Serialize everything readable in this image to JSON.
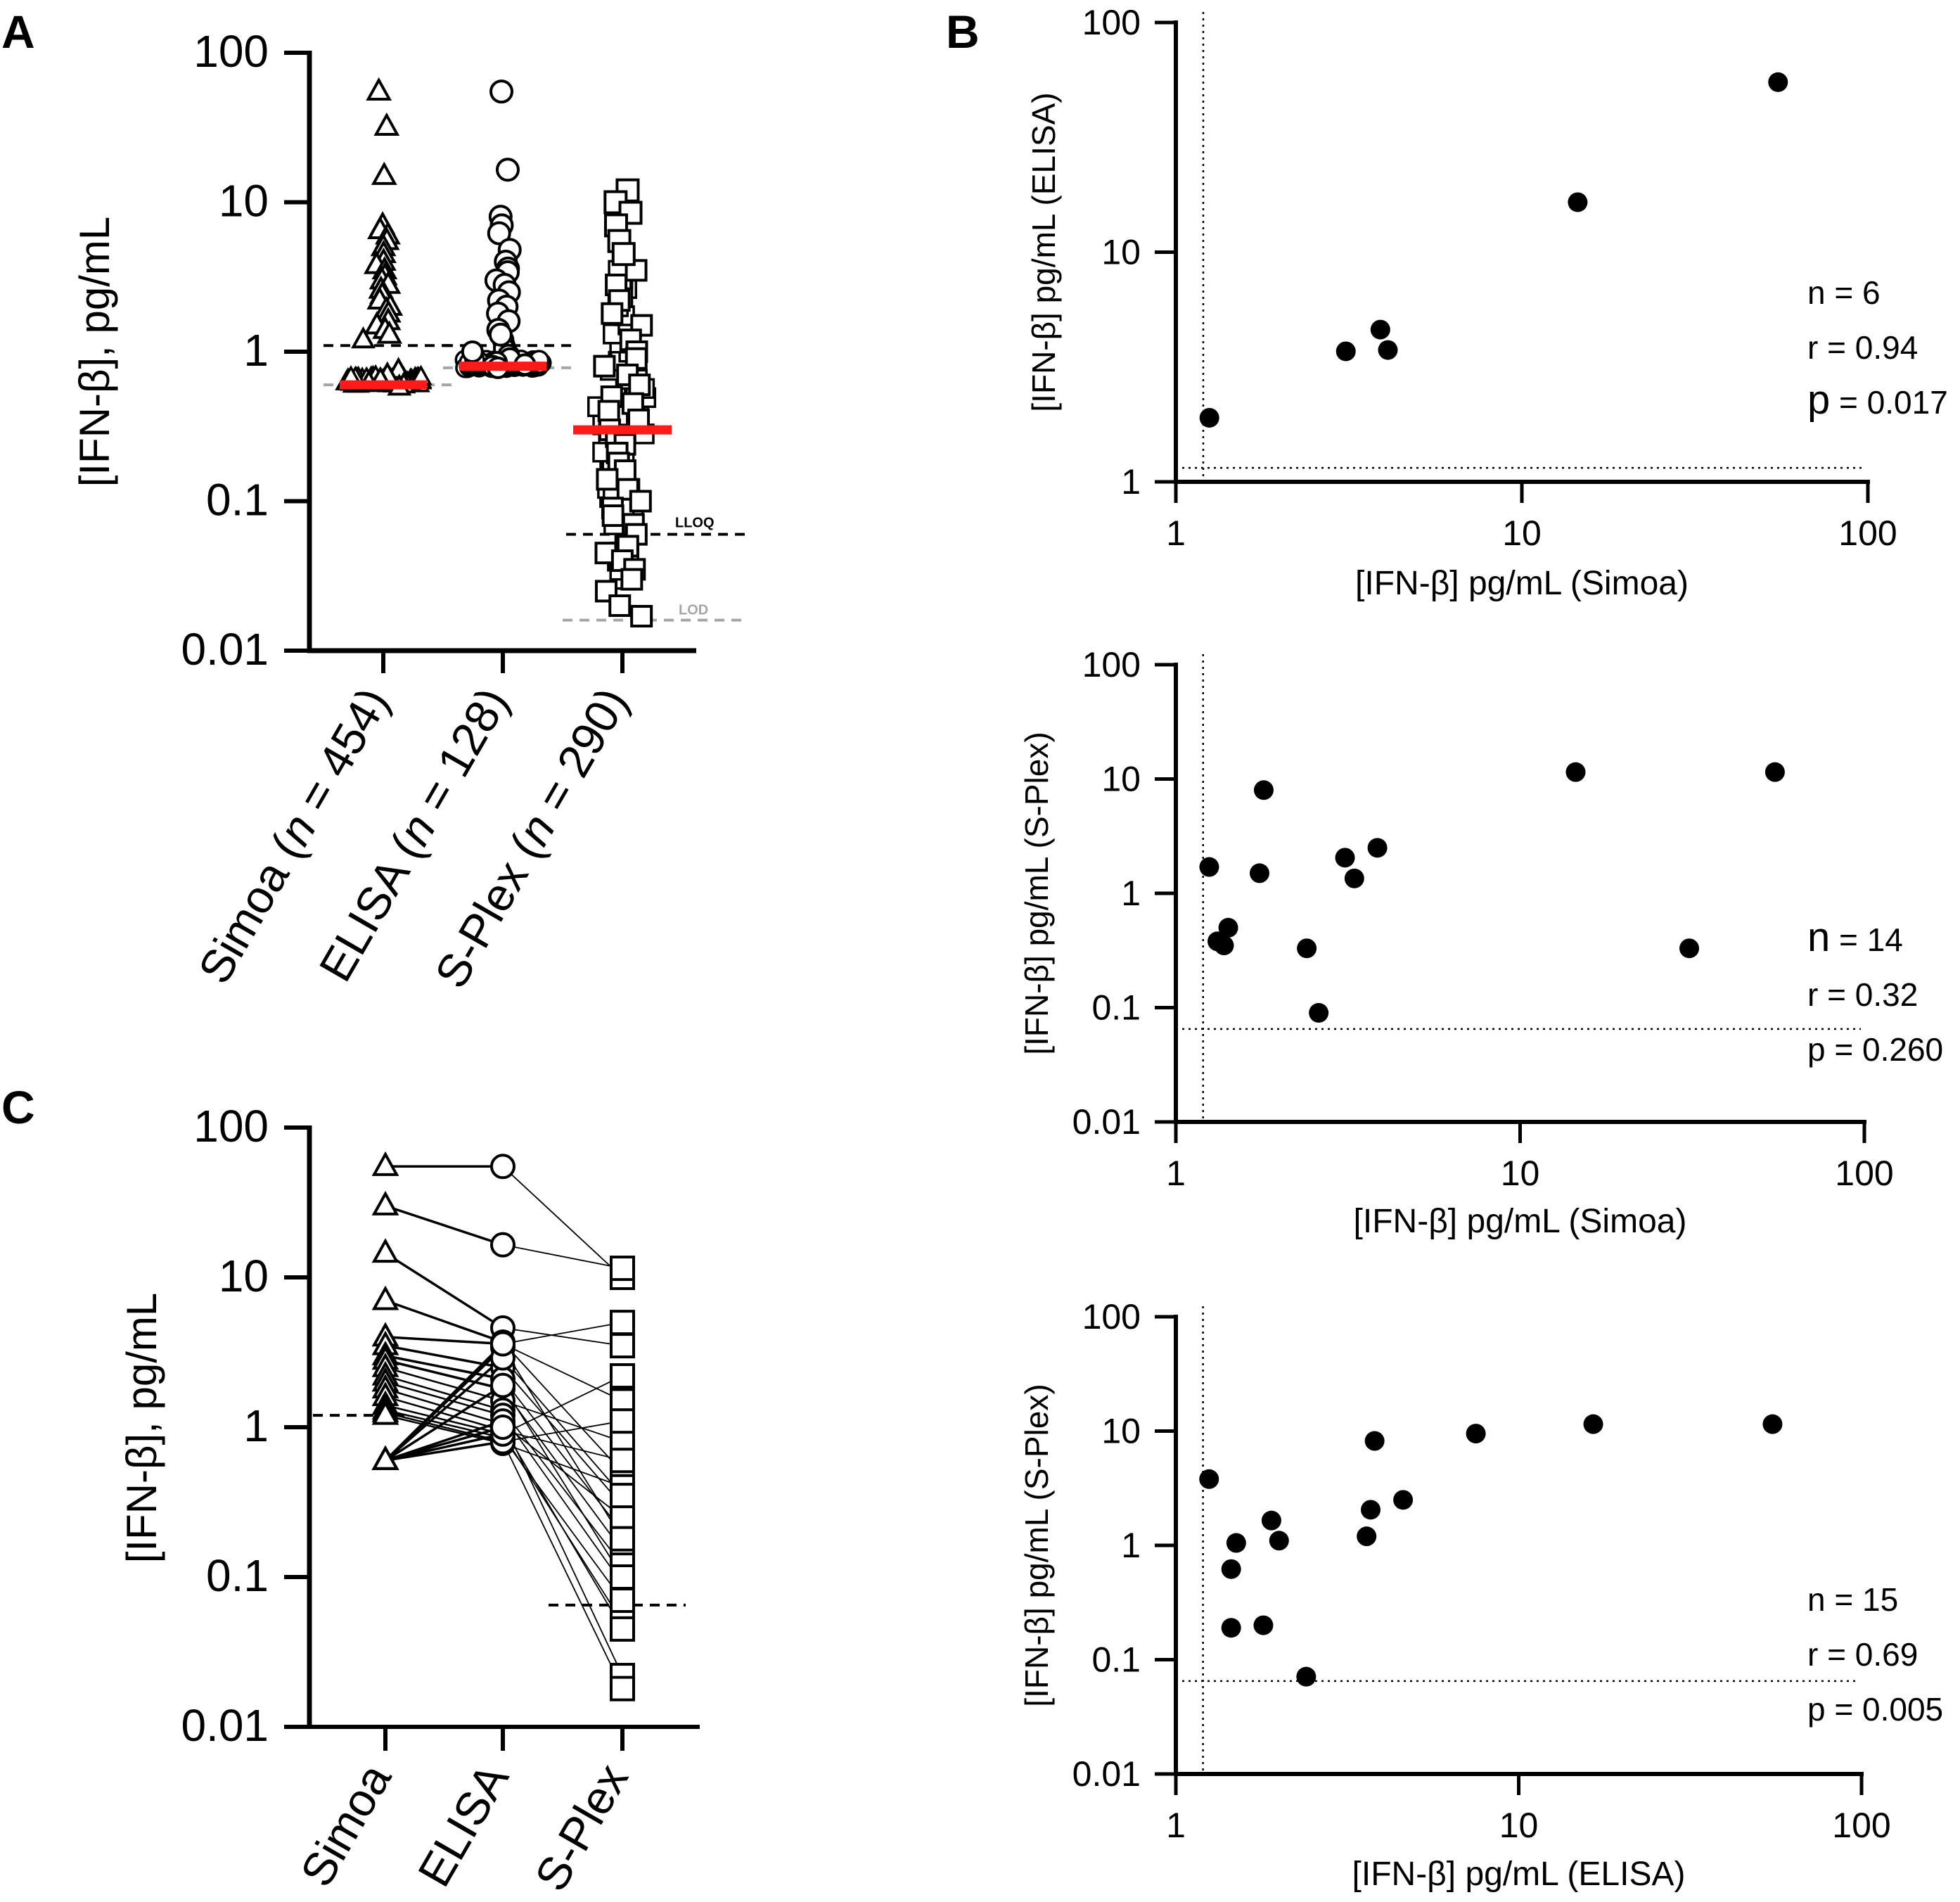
{
  "colors": {
    "ink": "#000000",
    "median": "#ff1a1a",
    "lod": "#a6a6a6",
    "white": "#ffffff"
  },
  "panels": {
    "A": {
      "letter": "A"
    },
    "B": {
      "letter": "B"
    },
    "C": {
      "letter": "C"
    }
  },
  "chart_data": [
    {
      "id": "A",
      "type": "scatter",
      "subtype": "column-scatter",
      "ylabel": "[IFN-β], pg/mL",
      "yscale": "log",
      "ylim": [
        0.01,
        100
      ],
      "yticks": [
        "0.01",
        "0.1",
        "1",
        "10",
        "100"
      ],
      "categories": [
        {
          "pre": "Simoa (",
          "n": "n",
          "post": " = 454)",
          "marker": "triangle"
        },
        {
          "pre": "ELISA (",
          "n": "n",
          "post": " = 128)",
          "marker": "circle"
        },
        {
          "pre": "S-Plex (",
          "n": "n",
          "post": " = 290)",
          "marker": "square"
        }
      ],
      "series": [
        {
          "name": "Simoa",
          "median": 0.6,
          "lloq": 1.1,
          "lod": 0.6,
          "values": [
            55,
            32,
            15,
            7,
            6.5,
            6,
            5.5,
            5,
            4.5,
            4,
            3.8,
            3.5,
            3.2,
            3,
            2.8,
            2.6,
            2.4,
            2.2,
            2,
            1.9,
            1.8,
            1.6,
            1.5,
            1.4,
            1.3,
            1.2,
            0.75,
            0.7,
            0.65,
            0.62,
            0.6,
            0.58
          ]
        },
        {
          "name": "ELISA",
          "median": 0.8,
          "lloq": 1.1,
          "lod": 0.78,
          "values": [
            55,
            16.5,
            8,
            7,
            6.2,
            4.8,
            4,
            3.6,
            3.4,
            3,
            2.8,
            2.5,
            2.2,
            2,
            1.8,
            1.6,
            1.4,
            1.3,
            1.2,
            1.1,
            1.05,
            1,
            0.95,
            0.9,
            0.85,
            0.82,
            0.8,
            0.78
          ]
        },
        {
          "name": "S-Plex",
          "median": 0.3,
          "lloq": 0.06,
          "lod": 0.016,
          "values": [
            12,
            10,
            8.5,
            7,
            5.5,
            4.5,
            3.5,
            2.8,
            2.2,
            1.8,
            1.5,
            1.2,
            1,
            0.9,
            0.8,
            0.7,
            0.6,
            0.5,
            0.45,
            0.4,
            0.35,
            0.3,
            0.27,
            0.24,
            0.21,
            0.18,
            0.16,
            0.14,
            0.12,
            0.1,
            0.09,
            0.08,
            0.07,
            0.06,
            0.05,
            0.045,
            0.04,
            0.035,
            0.03,
            0.025,
            0.02,
            0.017
          ]
        }
      ],
      "annotations": [
        {
          "text": "LLOQ",
          "series": "S-Plex",
          "color": "ink"
        },
        {
          "text": "LOD",
          "series": "S-Plex",
          "color": "lod"
        }
      ]
    },
    {
      "id": "B1",
      "type": "scatter",
      "xlabel": "[IFN-β] pg/mL (Simoa)",
      "ylabel": "[IFN-β] pg/mL (ELISA)",
      "xscale": "log",
      "yscale": "log",
      "xlim": [
        1,
        100
      ],
      "ylim": [
        1,
        100
      ],
      "xticks": [
        "1",
        "10",
        "100"
      ],
      "yticks": [
        "1",
        "10",
        "100"
      ],
      "ref_x": 1.2,
      "ref_y": 1.15,
      "stats": {
        "n_letter": "n",
        "n": " = 6",
        "r": "r = 0.94",
        "p_letter": "p",
        "p": " = 0.017"
      },
      "points": [
        [
          1.25,
          1.9
        ],
        [
          3.1,
          3.7
        ],
        [
          3.9,
          4.6
        ],
        [
          4.1,
          3.75
        ],
        [
          14.5,
          16.5
        ],
        [
          55,
          55
        ]
      ]
    },
    {
      "id": "B2",
      "type": "scatter",
      "xlabel": "[IFN-β] pg/mL (Simoa)",
      "ylabel": "[IFN-β] pg/mL (S-Plex)",
      "xscale": "log",
      "yscale": "log",
      "xlim": [
        1,
        100
      ],
      "ylim": [
        0.01,
        100
      ],
      "xticks": [
        "1",
        "10",
        "100"
      ],
      "yticks": [
        "0.01",
        "0.1",
        "1",
        "10",
        "100"
      ],
      "ref_x": 1.2,
      "ref_y": 0.065,
      "stats": {
        "n_letter": "n",
        "n": " = 14",
        "r": "r = 0.32",
        "p_letter": "p",
        "p": " = 0.260"
      },
      "points": [
        [
          1.25,
          1.7
        ],
        [
          1.32,
          0.38
        ],
        [
          1.38,
          0.35
        ],
        [
          1.42,
          0.5
        ],
        [
          1.75,
          1.5
        ],
        [
          1.8,
          8
        ],
        [
          2.4,
          0.33
        ],
        [
          2.6,
          0.09
        ],
        [
          3.1,
          2.05
        ],
        [
          3.3,
          1.35
        ],
        [
          3.85,
          2.5
        ],
        [
          14.5,
          11.5
        ],
        [
          31,
          0.33
        ],
        [
          55,
          11.5
        ]
      ]
    },
    {
      "id": "B3",
      "type": "scatter",
      "xlabel": "[IFN-β] pg/mL (ELISA)",
      "ylabel": "[IFN-β] pg/mL (S-Plex)",
      "xscale": "log",
      "yscale": "log",
      "xlim": [
        1,
        100
      ],
      "ylim": [
        0.01,
        100
      ],
      "xticks": [
        "1",
        "10",
        "100"
      ],
      "yticks": [
        "0.01",
        "0.1",
        "1",
        "10",
        "100"
      ],
      "ref_x": 1.2,
      "ref_y": 0.065,
      "stats": {
        "n_letter": "n",
        "n": " = 15",
        "r": "r = 0.69",
        "p_letter": "p",
        "p": " = 0.005"
      },
      "points": [
        [
          1.25,
          3.8
        ],
        [
          1.45,
          0.62
        ],
        [
          1.45,
          0.19
        ],
        [
          1.5,
          1.05
        ],
        [
          1.8,
          0.2
        ],
        [
          1.9,
          1.65
        ],
        [
          2,
          1.1
        ],
        [
          2.4,
          0.071
        ],
        [
          3.6,
          1.2
        ],
        [
          3.7,
          2.05
        ],
        [
          3.8,
          8.2
        ],
        [
          4.6,
          2.5
        ],
        [
          7.5,
          9.5
        ],
        [
          16.5,
          11.5
        ],
        [
          55,
          11.5
        ]
      ]
    },
    {
      "id": "C",
      "type": "line",
      "subtype": "paired",
      "ylabel": "[IFN-β], pg/mL",
      "yscale": "log",
      "ylim": [
        0.01,
        100
      ],
      "yticks": [
        "0.01",
        "0.1",
        "1",
        "10",
        "100"
      ],
      "categories": [
        "Simoa",
        "ELISA",
        "S-Plex"
      ],
      "markers": [
        "triangle",
        "circle",
        "square"
      ],
      "lloq_simoa": 1.2,
      "lloq_splex": 0.065,
      "pairs": [
        [
          55,
          55,
          10
        ],
        [
          30,
          16.5,
          11.5
        ],
        [
          14.5,
          4.6,
          3.5
        ],
        [
          7,
          3.7,
          0.5
        ],
        [
          4,
          3.6,
          1.5
        ],
        [
          3.5,
          2.5,
          0.3
        ],
        [
          3,
          2.1,
          0.2
        ],
        [
          2.8,
          1.8,
          0.15
        ],
        [
          2.5,
          1.5,
          0.8
        ],
        [
          2.2,
          1.3,
          0.12
        ],
        [
          2,
          1.2,
          0.09
        ],
        [
          1.8,
          1.05,
          0.25
        ],
        [
          1.6,
          0.95,
          0.6
        ],
        [
          1.4,
          0.9,
          0.05
        ],
        [
          1.3,
          0.85,
          0.07
        ],
        [
          1.25,
          0.8,
          1.1
        ],
        [
          1.2,
          0.78,
          0.4
        ],
        [
          0.6,
          3.4,
          0.18
        ],
        [
          0.6,
          2.9,
          0.35
        ],
        [
          0.6,
          1.9,
          0.1
        ],
        [
          0.6,
          1.1,
          0.022
        ],
        [
          0.6,
          0.8,
          0.018
        ],
        [
          0.6,
          0.9,
          2.2
        ],
        [
          0.6,
          1,
          0.045
        ],
        [
          0.6,
          3.6,
          5
        ]
      ]
    }
  ]
}
